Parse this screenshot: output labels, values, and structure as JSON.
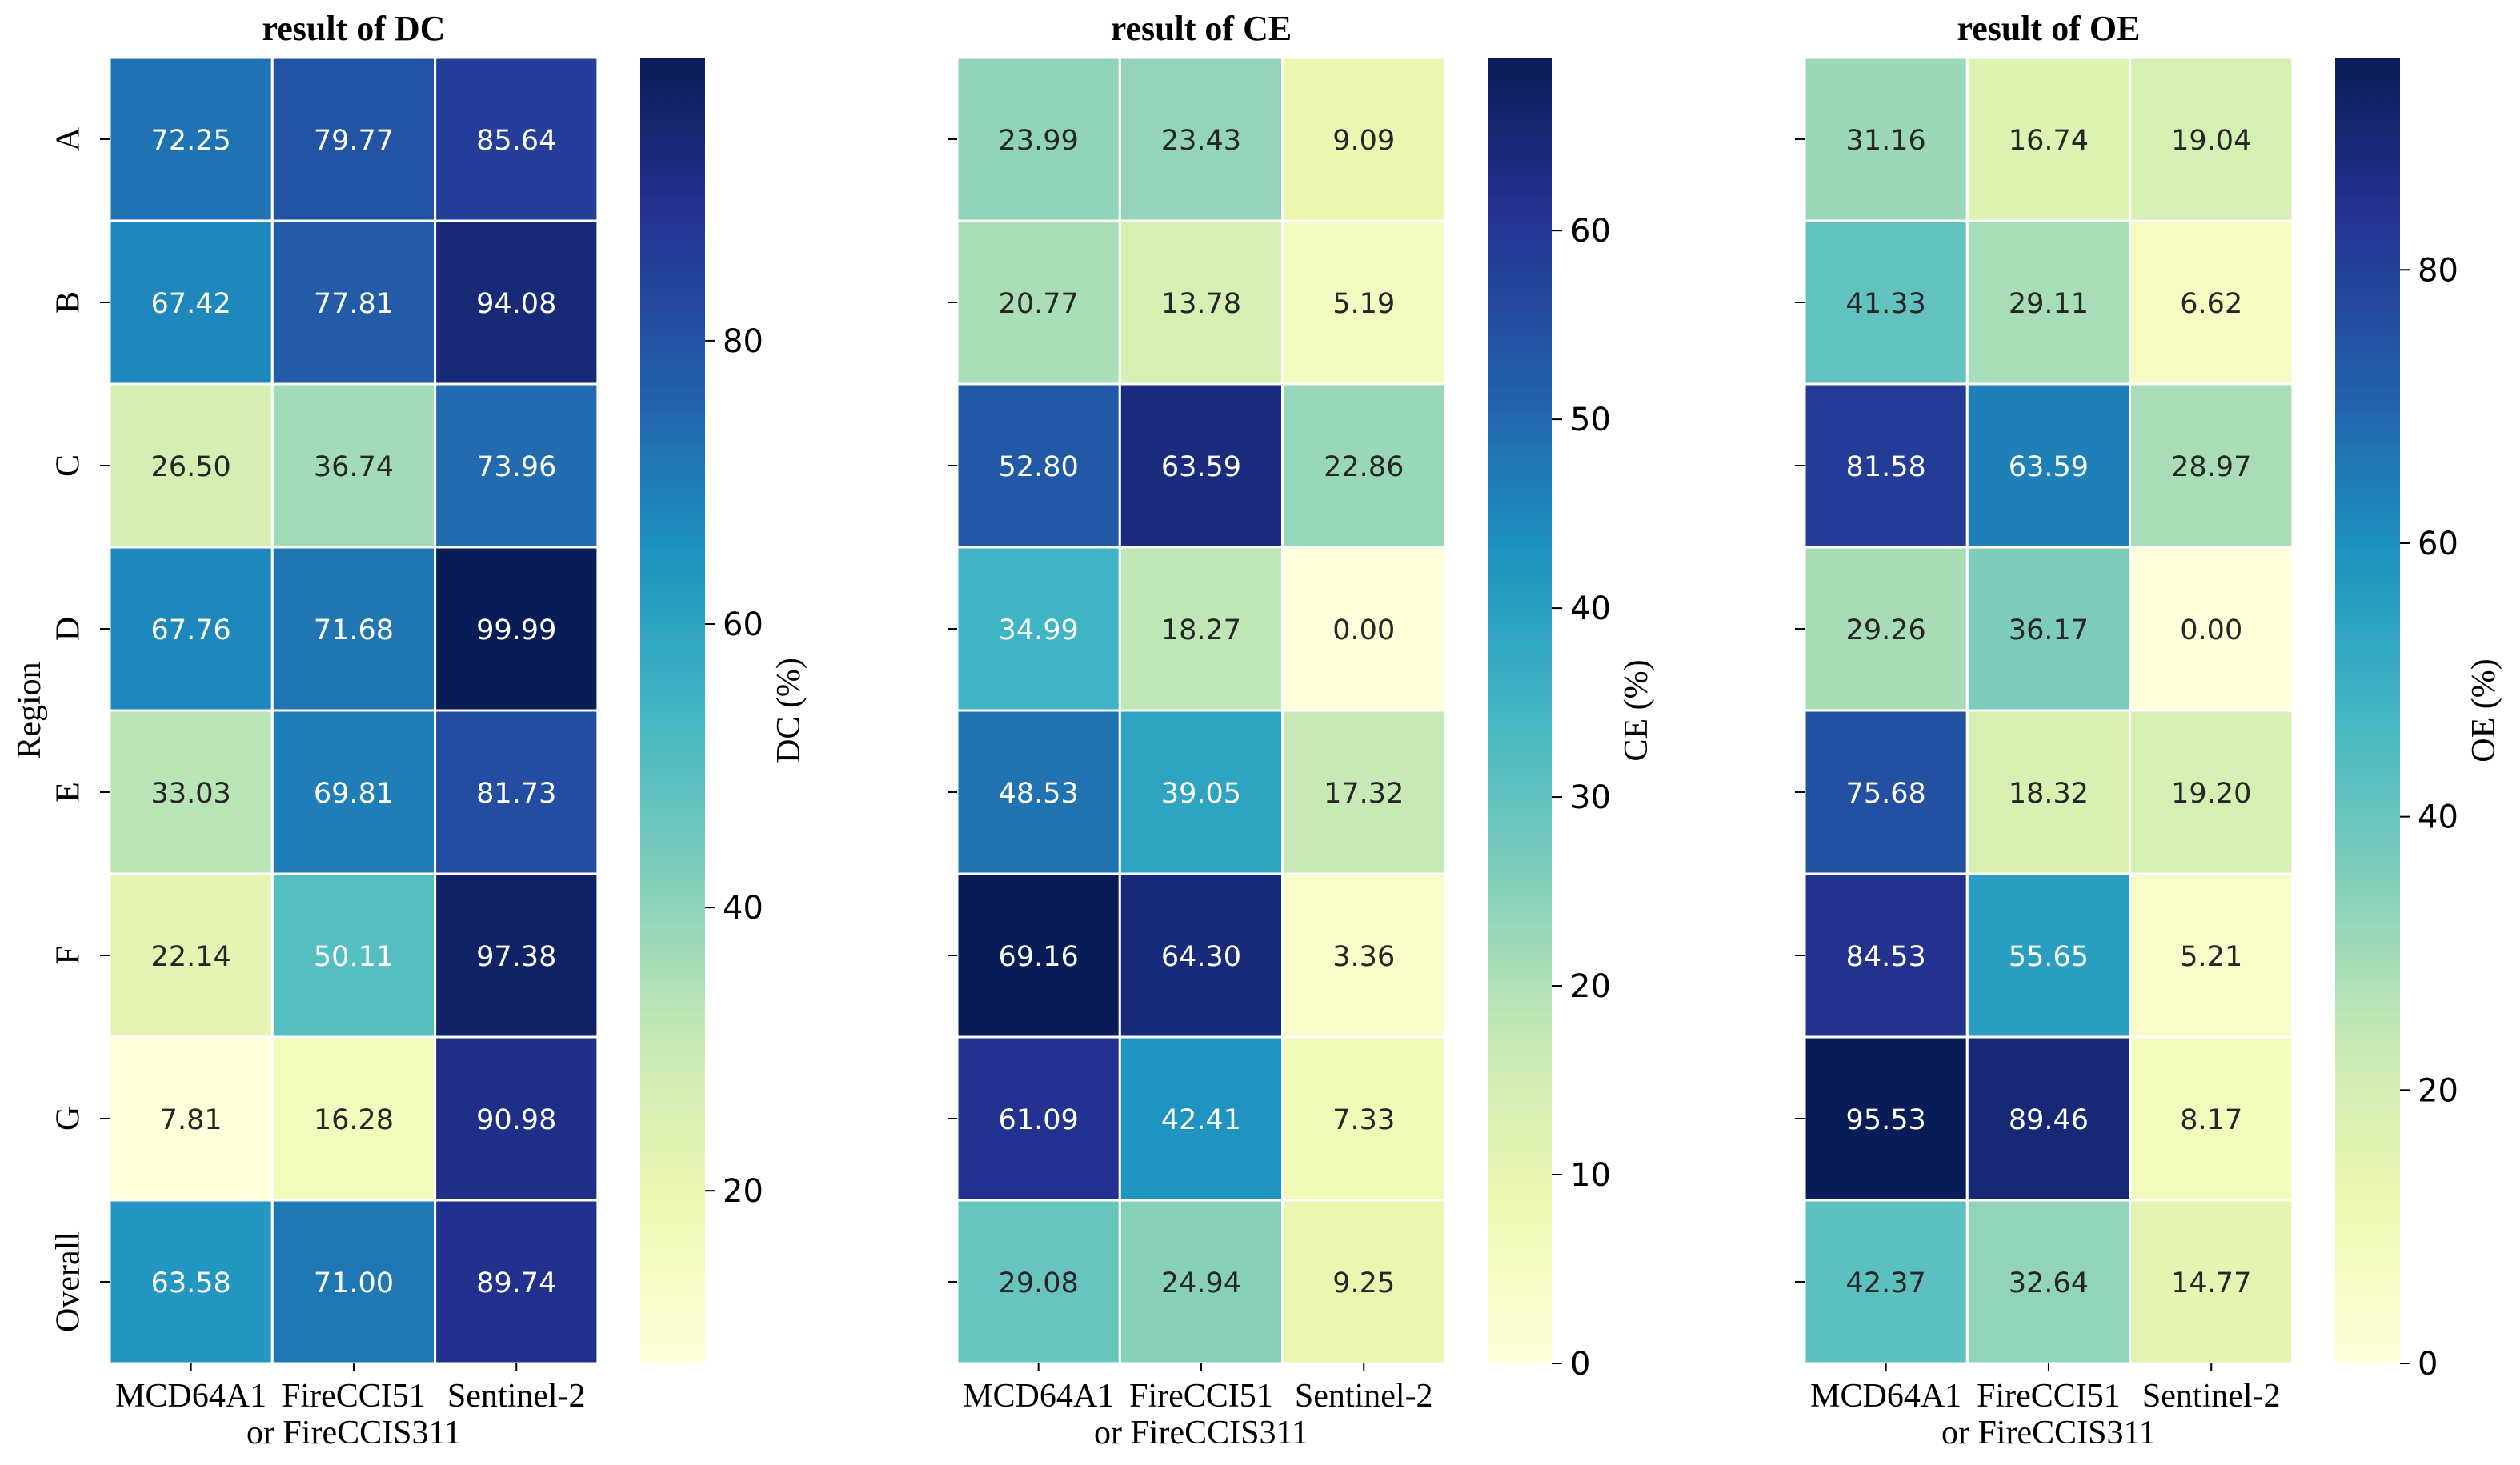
{
  "chart_data": [
    {
      "type": "heatmap",
      "title": "result of DC",
      "xlabel": "",
      "ylabel": "Region",
      "categories_x": [
        "MCD64A1",
        "FireCCI51 or FireCCIS311",
        "Sentinel-2"
      ],
      "x_tick_lines": [
        [
          "MCD64A1"
        ],
        [
          "FireCCI51",
          "or FireCCIS311"
        ],
        [
          "Sentinel-2"
        ]
      ],
      "categories_y": [
        "A",
        "B",
        "C",
        "D",
        "E",
        "F",
        "G",
        "Overall"
      ],
      "values": [
        [
          72.25,
          79.77,
          85.64
        ],
        [
          67.42,
          77.81,
          94.08
        ],
        [
          26.5,
          36.74,
          73.96
        ],
        [
          67.76,
          71.68,
          99.99
        ],
        [
          33.03,
          69.81,
          81.73
        ],
        [
          22.14,
          50.11,
          97.38
        ],
        [
          7.81,
          16.28,
          90.98
        ],
        [
          63.58,
          71.0,
          89.74
        ]
      ],
      "value_labels": [
        [
          "72.25",
          "79.77",
          "85.64"
        ],
        [
          "67.42",
          "77.81",
          "94.08"
        ],
        [
          "26.50",
          "36.74",
          "73.96"
        ],
        [
          "67.76",
          "71.68",
          "99.99"
        ],
        [
          "33.03",
          "69.81",
          "81.73"
        ],
        [
          "22.14",
          "50.11",
          "97.38"
        ],
        [
          "7.81",
          "16.28",
          "90.98"
        ],
        [
          "63.58",
          "71.00",
          "89.74"
        ]
      ],
      "colormap": "YlGnBu",
      "colorbar": {
        "label": "DC (%)",
        "range": [
          7.81,
          99.99
        ],
        "ticks": [
          20,
          40,
          60,
          80
        ],
        "tick_labels": [
          "20",
          "40",
          "60",
          "80"
        ]
      }
    },
    {
      "type": "heatmap",
      "title": "result of CE",
      "xlabel": "",
      "ylabel": "",
      "categories_x": [
        "MCD64A1",
        "FireCCI51 or FireCCIS311",
        "Sentinel-2"
      ],
      "x_tick_lines": [
        [
          "MCD64A1"
        ],
        [
          "FireCCI51",
          "or FireCCIS311"
        ],
        [
          "Sentinel-2"
        ]
      ],
      "categories_y": [
        "A",
        "B",
        "C",
        "D",
        "E",
        "F",
        "G",
        "Overall"
      ],
      "values": [
        [
          23.99,
          23.43,
          9.09
        ],
        [
          20.77,
          13.78,
          5.19
        ],
        [
          52.8,
          63.59,
          22.86
        ],
        [
          34.99,
          18.27,
          0.0
        ],
        [
          48.53,
          39.05,
          17.32
        ],
        [
          69.16,
          64.3,
          3.36
        ],
        [
          61.09,
          42.41,
          7.33
        ],
        [
          29.08,
          24.94,
          9.25
        ]
      ],
      "value_labels": [
        [
          "23.99",
          "23.43",
          "9.09"
        ],
        [
          "20.77",
          "13.78",
          "5.19"
        ],
        [
          "52.80",
          "63.59",
          "22.86"
        ],
        [
          "34.99",
          "18.27",
          "0.00"
        ],
        [
          "48.53",
          "39.05",
          "17.32"
        ],
        [
          "69.16",
          "64.30",
          "3.36"
        ],
        [
          "61.09",
          "42.41",
          "7.33"
        ],
        [
          "29.08",
          "24.94",
          "9.25"
        ]
      ],
      "colormap": "YlGnBu",
      "colorbar": {
        "label": "CE (%)",
        "range": [
          0,
          69.16
        ],
        "ticks": [
          0,
          10,
          20,
          30,
          40,
          50,
          60
        ],
        "tick_labels": [
          "0",
          "10",
          "20",
          "30",
          "40",
          "50",
          "60"
        ]
      }
    },
    {
      "type": "heatmap",
      "title": "result of OE",
      "xlabel": "",
      "ylabel": "",
      "categories_x": [
        "MCD64A1",
        "FireCCI51 or FireCCIS311",
        "Sentinel-2"
      ],
      "x_tick_lines": [
        [
          "MCD64A1"
        ],
        [
          "FireCCI51",
          "or FireCCIS311"
        ],
        [
          "Sentinel-2"
        ]
      ],
      "categories_y": [
        "A",
        "B",
        "C",
        "D",
        "E",
        "F",
        "G",
        "Overall"
      ],
      "values": [
        [
          31.16,
          16.74,
          19.04
        ],
        [
          41.33,
          29.11,
          6.62
        ],
        [
          81.58,
          63.59,
          28.97
        ],
        [
          29.26,
          36.17,
          0.0
        ],
        [
          75.68,
          18.32,
          19.2
        ],
        [
          84.53,
          55.65,
          5.21
        ],
        [
          95.53,
          89.46,
          8.17
        ],
        [
          42.37,
          32.64,
          14.77
        ]
      ],
      "value_labels": [
        [
          "31.16",
          "16.74",
          "19.04"
        ],
        [
          "41.33",
          "29.11",
          "6.62"
        ],
        [
          "81.58",
          "63.59",
          "28.97"
        ],
        [
          "29.26",
          "36.17",
          "0.00"
        ],
        [
          "75.68",
          "18.32",
          "19.20"
        ],
        [
          "84.53",
          "55.65",
          "5.21"
        ],
        [
          "95.53",
          "89.46",
          "8.17"
        ],
        [
          "42.37",
          "32.64",
          "14.77"
        ]
      ],
      "colormap": "YlGnBu",
      "colorbar": {
        "label": "OE (%)",
        "range": [
          0,
          95.53
        ],
        "ticks": [
          0,
          20,
          40,
          60,
          80
        ],
        "tick_labels": [
          "0",
          "20",
          "40",
          "60",
          "80"
        ]
      }
    }
  ]
}
